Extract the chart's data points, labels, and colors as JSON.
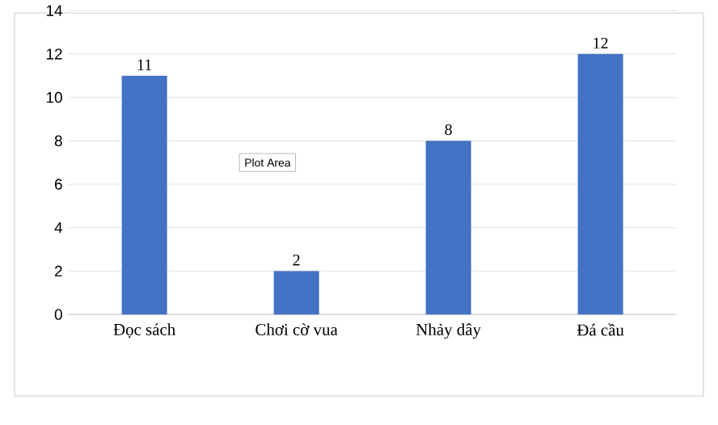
{
  "chart_data": {
    "type": "bar",
    "categories": [
      "Đọc sách",
      "Chơi cờ vua",
      "Nhảy dây",
      "Đá cầu"
    ],
    "values": [
      11,
      2,
      8,
      12
    ],
    "color": "#4472c4",
    "ylim": [
      0,
      14
    ],
    "yticks": [
      0,
      2,
      4,
      6,
      8,
      10,
      12,
      14
    ],
    "grid": "y",
    "data_labels": true,
    "annotations": [
      "Plot Area"
    ]
  }
}
